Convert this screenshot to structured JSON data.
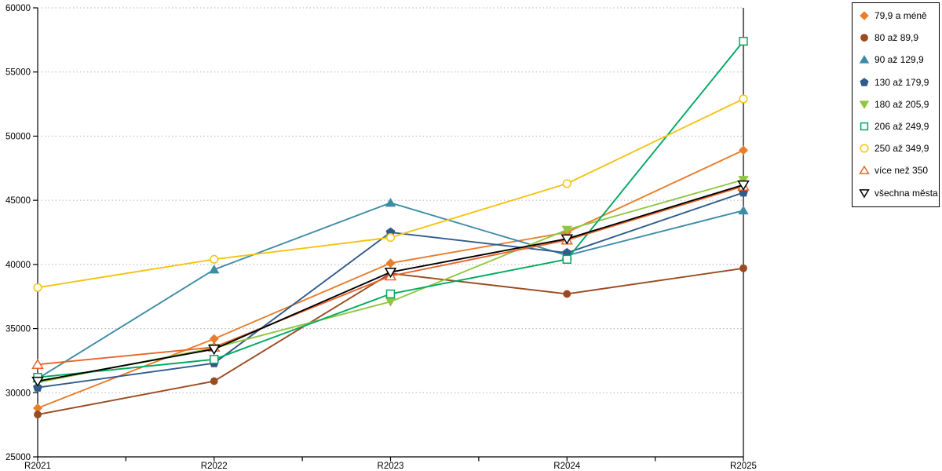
{
  "chart_data": {
    "type": "line",
    "title": "",
    "xlabel": "",
    "ylabel": "",
    "categories": [
      "R2021",
      "R2022",
      "R2023",
      "R2024",
      "R2025"
    ],
    "series": [
      {
        "name": "79,9 a méně",
        "marker": "diamond",
        "fill": "solid",
        "color": "#E87D2A",
        "values": [
          28800,
          34200,
          40100,
          42500,
          48900
        ]
      },
      {
        "name": "80 až 89,9",
        "marker": "circle",
        "fill": "solid",
        "color": "#9A4B20",
        "values": [
          28300,
          30900,
          39300,
          37700,
          39700
        ]
      },
      {
        "name": "90 až 129,9",
        "marker": "triangle-up",
        "fill": "solid",
        "color": "#3D8CA6",
        "values": [
          31100,
          39600,
          44800,
          40700,
          44200
        ]
      },
      {
        "name": "130 až 179,9",
        "marker": "pentagon",
        "fill": "solid",
        "color": "#305A8C",
        "values": [
          30400,
          32300,
          42500,
          40900,
          45600
        ]
      },
      {
        "name": "180 až 205,9",
        "marker": "triangle-down",
        "fill": "solid",
        "color": "#8FC742",
        "values": [
          30800,
          33500,
          37100,
          42700,
          46600
        ]
      },
      {
        "name": "206 až 249,9",
        "marker": "square",
        "fill": "open",
        "color": "#00A95F",
        "values": [
          31200,
          32600,
          37700,
          40400,
          57400
        ]
      },
      {
        "name": "250 až 349,9",
        "marker": "circle",
        "fill": "open",
        "color": "#F5C313",
        "values": [
          38200,
          40400,
          42100,
          46300,
          52900
        ]
      },
      {
        "name": "více než 350",
        "marker": "triangle-up",
        "fill": "open",
        "color": "#E8642C",
        "values": [
          32200,
          33550,
          39100,
          41900,
          46100
        ]
      },
      {
        "name": "všechna města",
        "marker": "triangle-down",
        "fill": "open",
        "color": "#000000",
        "values": [
          30900,
          33400,
          39400,
          42000,
          46200
        ]
      }
    ],
    "ylim": [
      25000,
      60000
    ],
    "ytick_step": 5000,
    "y_tick_labels": [
      "25000",
      "30000",
      "35000",
      "40000",
      "45000",
      "50000",
      "55000",
      "60000"
    ],
    "grid": "horizontal-dotted",
    "legend_position": "right",
    "colors": {
      "axis": "#000000",
      "grid": "#b3b3b3",
      "background": "#ffffff",
      "legend_border": "#000000",
      "tick_label": "#000000"
    }
  }
}
